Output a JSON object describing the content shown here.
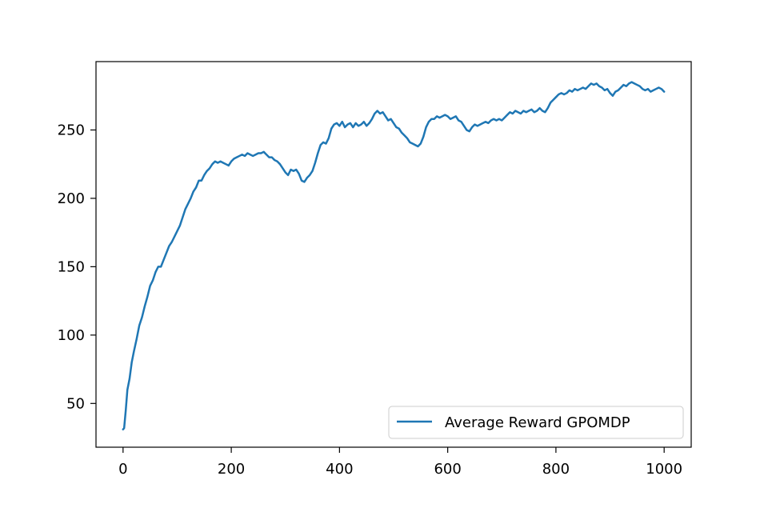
{
  "chart_data": {
    "type": "line",
    "title": "",
    "xlabel": "",
    "ylabel": "",
    "xlim": [
      -50,
      1050
    ],
    "ylim": [
      18,
      300
    ],
    "xticks": [
      0,
      200,
      400,
      600,
      800,
      1000
    ],
    "yticks": [
      50,
      100,
      150,
      200,
      250
    ],
    "grid": false,
    "legend_position": "bottom-right",
    "series": [
      {
        "name": "Average Reward GPOMDP",
        "color": "#1f77b4",
        "points": [
          [
            0,
            31
          ],
          [
            2,
            32
          ],
          [
            5,
            45
          ],
          [
            8,
            60
          ],
          [
            12,
            68
          ],
          [
            16,
            80
          ],
          [
            20,
            88
          ],
          [
            25,
            97
          ],
          [
            30,
            107
          ],
          [
            35,
            113
          ],
          [
            40,
            121
          ],
          [
            45,
            128
          ],
          [
            50,
            136
          ],
          [
            55,
            140
          ],
          [
            60,
            146
          ],
          [
            65,
            150
          ],
          [
            70,
            150
          ],
          [
            75,
            155
          ],
          [
            80,
            160
          ],
          [
            85,
            165
          ],
          [
            90,
            168
          ],
          [
            95,
            172
          ],
          [
            100,
            176
          ],
          [
            105,
            180
          ],
          [
            110,
            186
          ],
          [
            115,
            192
          ],
          [
            120,
            196
          ],
          [
            125,
            200
          ],
          [
            130,
            205
          ],
          [
            135,
            208
          ],
          [
            140,
            213
          ],
          [
            145,
            213
          ],
          [
            150,
            217
          ],
          [
            155,
            220
          ],
          [
            160,
            222
          ],
          [
            165,
            225
          ],
          [
            170,
            227
          ],
          [
            175,
            226
          ],
          [
            180,
            227
          ],
          [
            185,
            226
          ],
          [
            190,
            225
          ],
          [
            195,
            224
          ],
          [
            200,
            227
          ],
          [
            205,
            229
          ],
          [
            210,
            230
          ],
          [
            215,
            231
          ],
          [
            220,
            232
          ],
          [
            225,
            231
          ],
          [
            230,
            233
          ],
          [
            235,
            232
          ],
          [
            240,
            231
          ],
          [
            245,
            232
          ],
          [
            250,
            233
          ],
          [
            255,
            233
          ],
          [
            260,
            234
          ],
          [
            265,
            232
          ],
          [
            270,
            230
          ],
          [
            275,
            230
          ],
          [
            280,
            228
          ],
          [
            285,
            227
          ],
          [
            290,
            225
          ],
          [
            295,
            222
          ],
          [
            300,
            219
          ],
          [
            305,
            217
          ],
          [
            310,
            221
          ],
          [
            315,
            220
          ],
          [
            320,
            221
          ],
          [
            325,
            218
          ],
          [
            330,
            213
          ],
          [
            335,
            212
          ],
          [
            340,
            215
          ],
          [
            345,
            217
          ],
          [
            350,
            220
          ],
          [
            355,
            226
          ],
          [
            360,
            233
          ],
          [
            365,
            239
          ],
          [
            370,
            241
          ],
          [
            375,
            240
          ],
          [
            380,
            244
          ],
          [
            385,
            251
          ],
          [
            390,
            254
          ],
          [
            395,
            255
          ],
          [
            400,
            253
          ],
          [
            405,
            256
          ],
          [
            410,
            252
          ],
          [
            415,
            254
          ],
          [
            420,
            255
          ],
          [
            425,
            252
          ],
          [
            430,
            255
          ],
          [
            435,
            253
          ],
          [
            440,
            254
          ],
          [
            445,
            256
          ],
          [
            450,
            253
          ],
          [
            455,
            255
          ],
          [
            460,
            258
          ],
          [
            465,
            262
          ],
          [
            470,
            264
          ],
          [
            475,
            262
          ],
          [
            480,
            263
          ],
          [
            485,
            260
          ],
          [
            490,
            257
          ],
          [
            495,
            258
          ],
          [
            500,
            255
          ],
          [
            505,
            252
          ],
          [
            510,
            251
          ],
          [
            515,
            248
          ],
          [
            520,
            246
          ],
          [
            525,
            244
          ],
          [
            530,
            241
          ],
          [
            535,
            240
          ],
          [
            540,
            239
          ],
          [
            545,
            238
          ],
          [
            550,
            240
          ],
          [
            555,
            245
          ],
          [
            560,
            252
          ],
          [
            565,
            256
          ],
          [
            570,
            258
          ],
          [
            575,
            258
          ],
          [
            580,
            260
          ],
          [
            585,
            259
          ],
          [
            590,
            260
          ],
          [
            595,
            261
          ],
          [
            600,
            260
          ],
          [
            605,
            258
          ],
          [
            610,
            259
          ],
          [
            615,
            260
          ],
          [
            620,
            257
          ],
          [
            625,
            256
          ],
          [
            630,
            253
          ],
          [
            635,
            250
          ],
          [
            640,
            249
          ],
          [
            645,
            252
          ],
          [
            650,
            254
          ],
          [
            655,
            253
          ],
          [
            660,
            254
          ],
          [
            665,
            255
          ],
          [
            670,
            256
          ],
          [
            675,
            255
          ],
          [
            680,
            257
          ],
          [
            685,
            258
          ],
          [
            690,
            257
          ],
          [
            695,
            258
          ],
          [
            700,
            257
          ],
          [
            705,
            259
          ],
          [
            710,
            261
          ],
          [
            715,
            263
          ],
          [
            720,
            262
          ],
          [
            725,
            264
          ],
          [
            730,
            263
          ],
          [
            735,
            262
          ],
          [
            740,
            264
          ],
          [
            745,
            263
          ],
          [
            750,
            264
          ],
          [
            755,
            265
          ],
          [
            760,
            263
          ],
          [
            765,
            264
          ],
          [
            770,
            266
          ],
          [
            775,
            264
          ],
          [
            780,
            263
          ],
          [
            785,
            266
          ],
          [
            790,
            270
          ],
          [
            795,
            272
          ],
          [
            800,
            274
          ],
          [
            805,
            276
          ],
          [
            810,
            277
          ],
          [
            815,
            276
          ],
          [
            820,
            277
          ],
          [
            825,
            279
          ],
          [
            830,
            278
          ],
          [
            835,
            280
          ],
          [
            840,
            279
          ],
          [
            845,
            280
          ],
          [
            850,
            281
          ],
          [
            855,
            280
          ],
          [
            860,
            282
          ],
          [
            865,
            284
          ],
          [
            870,
            283
          ],
          [
            875,
            284
          ],
          [
            880,
            282
          ],
          [
            885,
            281
          ],
          [
            890,
            279
          ],
          [
            895,
            280
          ],
          [
            900,
            277
          ],
          [
            905,
            275
          ],
          [
            910,
            278
          ],
          [
            915,
            279
          ],
          [
            920,
            281
          ],
          [
            925,
            283
          ],
          [
            930,
            282
          ],
          [
            935,
            284
          ],
          [
            940,
            285
          ],
          [
            945,
            284
          ],
          [
            950,
            283
          ],
          [
            955,
            282
          ],
          [
            960,
            280
          ],
          [
            965,
            279
          ],
          [
            970,
            280
          ],
          [
            975,
            278
          ],
          [
            980,
            279
          ],
          [
            985,
            280
          ],
          [
            990,
            281
          ],
          [
            995,
            280
          ],
          [
            1000,
            278
          ]
        ]
      }
    ]
  }
}
